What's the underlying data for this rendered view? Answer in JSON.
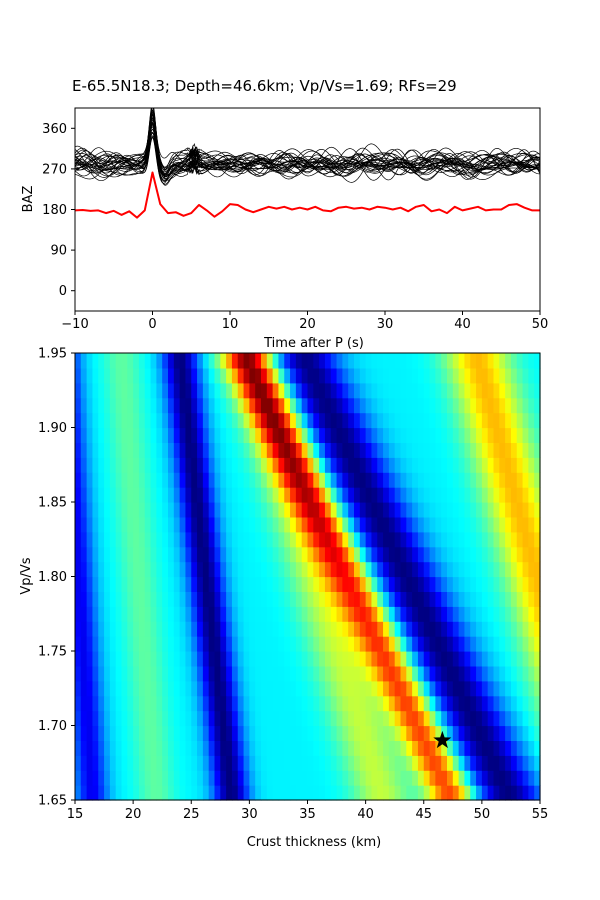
{
  "figure": {
    "title": "E-65.5N18.3; Depth=46.6km; Vp/Vs=1.69; RFs=29"
  },
  "chart_data": [
    {
      "type": "line",
      "panel": "receiver-functions",
      "xlabel": "Time after P (s)",
      "ylabel": "BAZ",
      "xlim": [
        -10,
        50
      ],
      "ylim": [
        -45,
        405
      ],
      "xticks": [
        -10,
        0,
        10,
        20,
        30,
        40,
        50
      ],
      "xtick_labels": [
        "−10",
        "0",
        "10",
        "20",
        "30",
        "40",
        "50"
      ],
      "yticks": [
        0,
        90,
        180,
        270,
        360
      ],
      "ytick_labels": [
        "0",
        "90",
        "180",
        "270",
        "360"
      ],
      "trace_count": 29,
      "trace_baseline_baz": 280,
      "trace_color": "#000000",
      "stack_color": "#ff0000",
      "series": [
        {
          "role": "stacked",
          "baseline": 180,
          "x": [
            -10,
            -9,
            -8,
            -7,
            -6,
            -5,
            -4,
            -3,
            -2,
            -1,
            0,
            1,
            2,
            3,
            4,
            5,
            6,
            7,
            8,
            9,
            10,
            11,
            12,
            13,
            14,
            15,
            16,
            17,
            18,
            19,
            20,
            21,
            22,
            23,
            24,
            25,
            26,
            27,
            28,
            29,
            30,
            31,
            32,
            33,
            34,
            35,
            36,
            37,
            38,
            39,
            40,
            41,
            42,
            43,
            44,
            45,
            46,
            47,
            48,
            49,
            50
          ],
          "y": [
            178,
            179,
            177,
            178,
            172,
            177,
            168,
            176,
            162,
            178,
            262,
            192,
            172,
            174,
            166,
            172,
            190,
            178,
            164,
            176,
            192,
            190,
            180,
            174,
            180,
            186,
            182,
            186,
            180,
            184,
            180,
            186,
            178,
            176,
            184,
            186,
            182,
            184,
            180,
            186,
            184,
            180,
            184,
            176,
            186,
            190,
            176,
            180,
            172,
            186,
            178,
            182,
            186,
            178,
            180,
            180,
            190,
            192,
            184,
            178,
            178
          ]
        }
      ]
    },
    {
      "type": "heatmap",
      "panel": "h-k-stacking",
      "xlabel": "Crust thickness (km)",
      "ylabel": "Vp/Vs",
      "xlim": [
        15,
        55
      ],
      "ylim": [
        1.65,
        1.95
      ],
      "xticks": [
        15,
        20,
        25,
        30,
        35,
        40,
        45,
        50,
        55
      ],
      "yticks": [
        1.65,
        1.7,
        1.75,
        1.8,
        1.85,
        1.9,
        1.95
      ],
      "ytick_labels": [
        "1.65",
        "1.70",
        "1.75",
        "1.80",
        "1.85",
        "1.90",
        "1.95"
      ],
      "colormap": "jet",
      "grid_nh": 80,
      "grid_nk": 30,
      "best_fit": {
        "thickness_km": 46.6,
        "vpvs": 1.69,
        "marker": "star"
      },
      "ridges": [
        {
          "h_at_k_1_65": 28.5,
          "slope_km_per_vpvs": -15,
          "sigma_km": 1.1,
          "amp": -1.0
        },
        {
          "h_at_k_1_65": 22.0,
          "slope_km_per_vpvs": -10,
          "sigma_km": 1.2,
          "amp": 0.28
        },
        {
          "h_at_k_1_65": 16.5,
          "slope_km_per_vpvs": -8,
          "sigma_km": 1.0,
          "amp": -0.7
        },
        {
          "h_at_k_1_65": 47.5,
          "slope_km_per_vpvs": -60,
          "sigma_km": 1.4,
          "amp": 1.25
        },
        {
          "h_at_k_1_65": 52.5,
          "slope_km_per_vpvs": -60,
          "sigma_km": 2.0,
          "amp": -1.0
        },
        {
          "h_at_k_1_65": 41.5,
          "slope_km_per_vpvs": -38,
          "sigma_km": 1.8,
          "amp": 0.55
        },
        {
          "h_at_k_1_65": 60.0,
          "slope_km_per_vpvs": -35,
          "sigma_km": 2.0,
          "amp": 0.9
        }
      ]
    }
  ]
}
